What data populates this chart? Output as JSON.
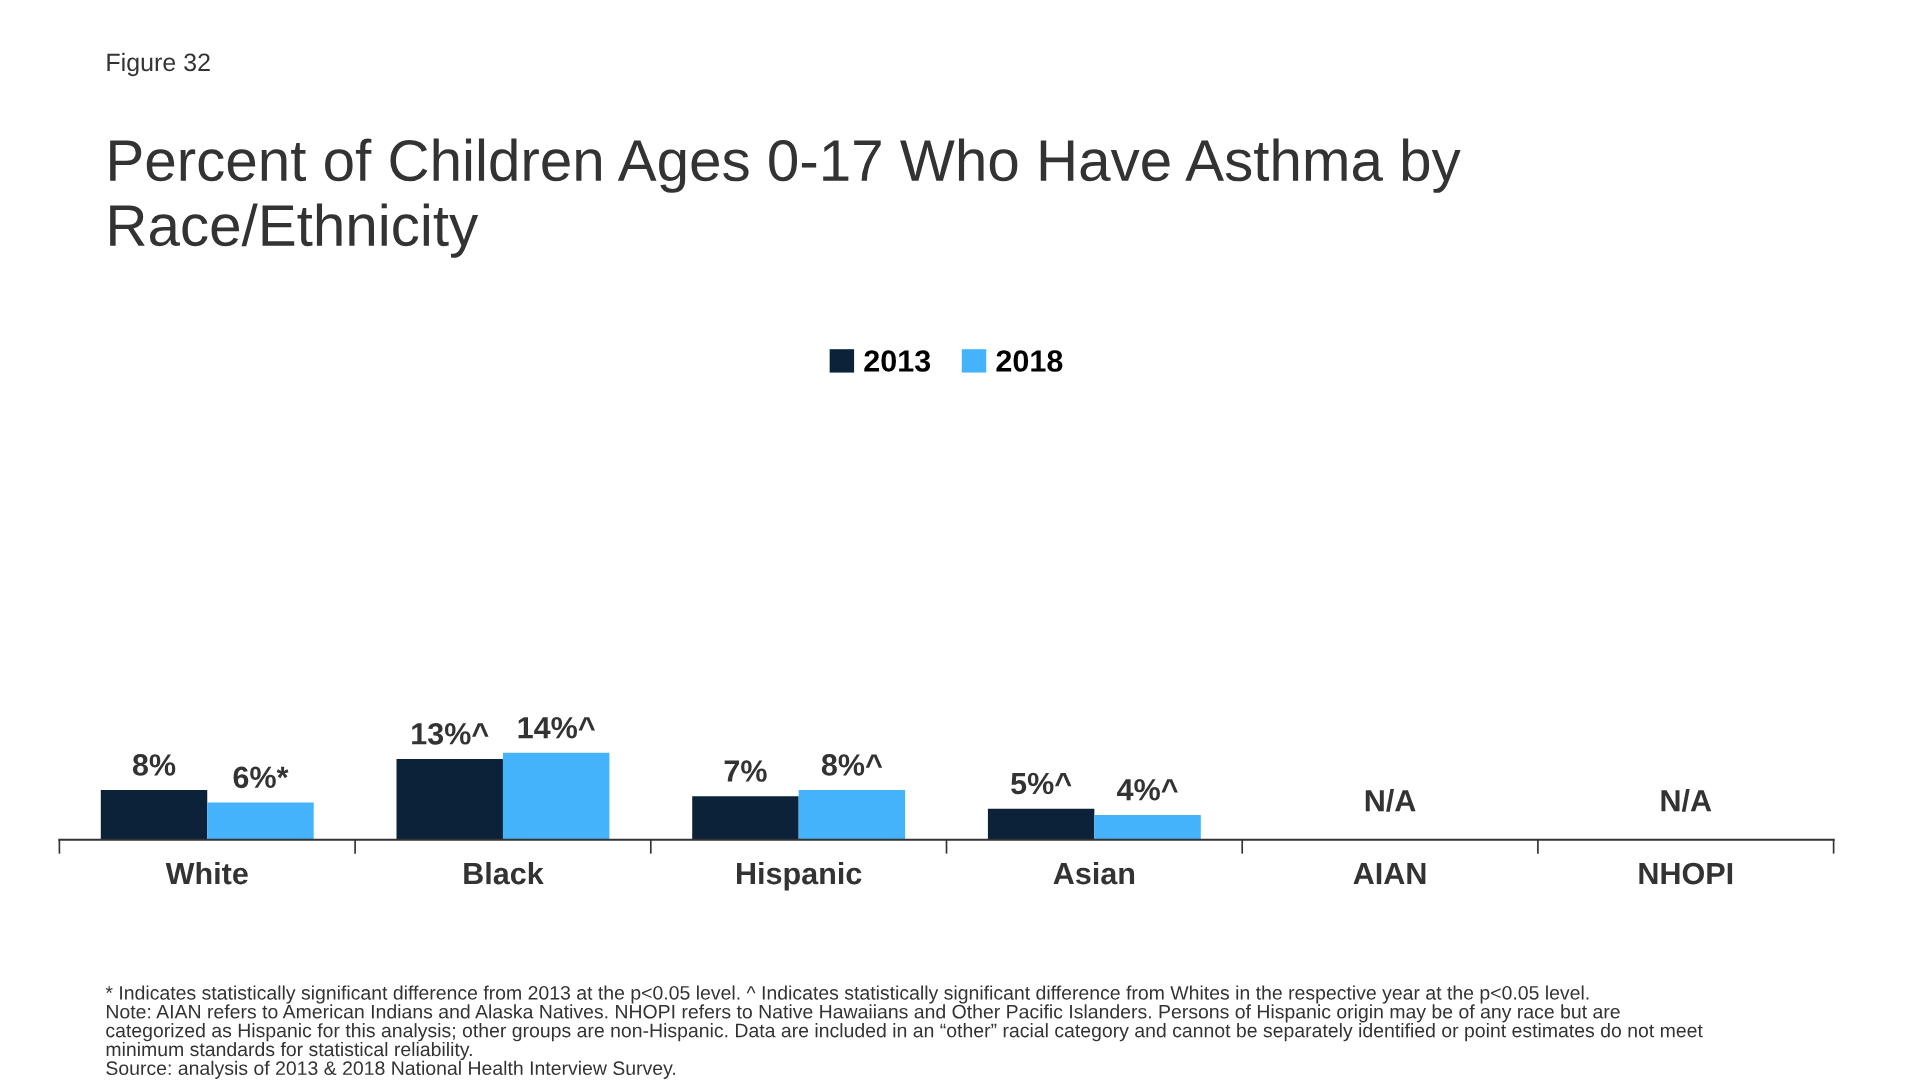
{
  "chart_data": {
    "type": "bar",
    "title": "Percent of Children Ages 0-17 Who Have Asthma by\nRace/Ethnicity",
    "subtitle": "Figure 32",
    "categories": [
      "White",
      "Black",
      "Hispanic",
      "Asian",
      "AIAN",
      "NHOPI"
    ],
    "series": [
      {
        "name": "2013",
        "color": "#0b2239",
        "values": [
          8,
          13,
          7,
          5,
          null,
          null
        ],
        "value_labels": [
          "8%",
          "13%^",
          "7%",
          "5%^",
          null,
          null
        ]
      },
      {
        "name": "2018",
        "color": "#44b3fb",
        "values": [
          6,
          14,
          8,
          4,
          null,
          null
        ],
        "value_labels": [
          "6%*",
          "14%^",
          "8%^",
          "4%^",
          "N/A",
          "N/A"
        ]
      }
    ],
    "legend": "top",
    "grid": false,
    "annotations": [
      "* Indicates statistically significant difference from 2013 at the p<0.05 level. ^ Indicates statistically significant difference from Whites in the respective year at the p<0.05 level.",
      "Note: AIAN refers to American Indians and Alaska Natives. NHOPI refers to Native Hawaiians and Other Pacific Islanders. Persons of Hispanic origin may be of any race but are categorized as Hispanic for this analysis; other groups are non-Hispanic. Data are included in an “other” racial category and cannot be separately identified or point estimates do not meet minimum standards for statistical reliability.",
      "Source: analysis of 2013 & 2018 National Health Interview Survey."
    ]
  }
}
